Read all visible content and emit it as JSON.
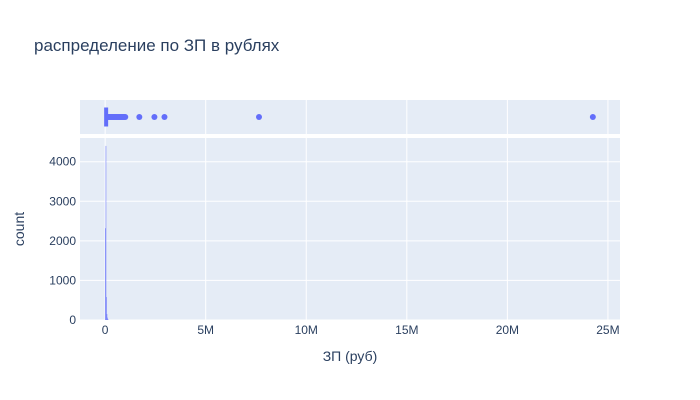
{
  "chart_data": {
    "type": "histogram",
    "title": "распределение по ЗП в рублях",
    "xlabel": "ЗП (руб)",
    "ylabel": "count",
    "xlim": [
      -1250000,
      25600000
    ],
    "ylim": [
      0,
      4600
    ],
    "x_ticks": [
      {
        "value": 0,
        "label": "0"
      },
      {
        "value": 5000000,
        "label": "5M"
      },
      {
        "value": 10000000,
        "label": "10M"
      },
      {
        "value": 15000000,
        "label": "15M"
      },
      {
        "value": 20000000,
        "label": "20M"
      },
      {
        "value": 25000000,
        "label": "25M"
      }
    ],
    "y_ticks": [
      {
        "value": 0,
        "label": "0"
      },
      {
        "value": 1000,
        "label": "1000"
      },
      {
        "value": 2000,
        "label": "2000"
      },
      {
        "value": 3000,
        "label": "3000"
      },
      {
        "value": 4000,
        "label": "4000"
      }
    ],
    "bins": [
      {
        "x0": 0,
        "x1": 25000,
        "count": 2320
      },
      {
        "x0": 25000,
        "x1": 50000,
        "count": 4400
      },
      {
        "x0": 50000,
        "x1": 75000,
        "count": 580
      },
      {
        "x0": 75000,
        "x1": 100000,
        "count": 150
      },
      {
        "x0": 100000,
        "x1": 125000,
        "count": 60
      },
      {
        "x0": 125000,
        "x1": 150000,
        "count": 25
      }
    ],
    "marginal": {
      "type": "box",
      "outliers": [
        150000,
        200000,
        250000,
        300000,
        350000,
        400000,
        450000,
        500000,
        550000,
        600000,
        650000,
        700000,
        750000,
        800000,
        850000,
        900000,
        950000,
        1000000,
        1700000,
        2450000,
        2950000,
        7650000,
        24250000
      ],
      "q1": 25000,
      "median": 40000,
      "q3": 60000,
      "whisker_low": 0,
      "whisker_high": 115000
    },
    "colors": {
      "bar": "#636efa",
      "plot_bg": "#e5ecf6",
      "grid": "#ffffff",
      "text": "#2a3f5f"
    },
    "grid": true
  }
}
